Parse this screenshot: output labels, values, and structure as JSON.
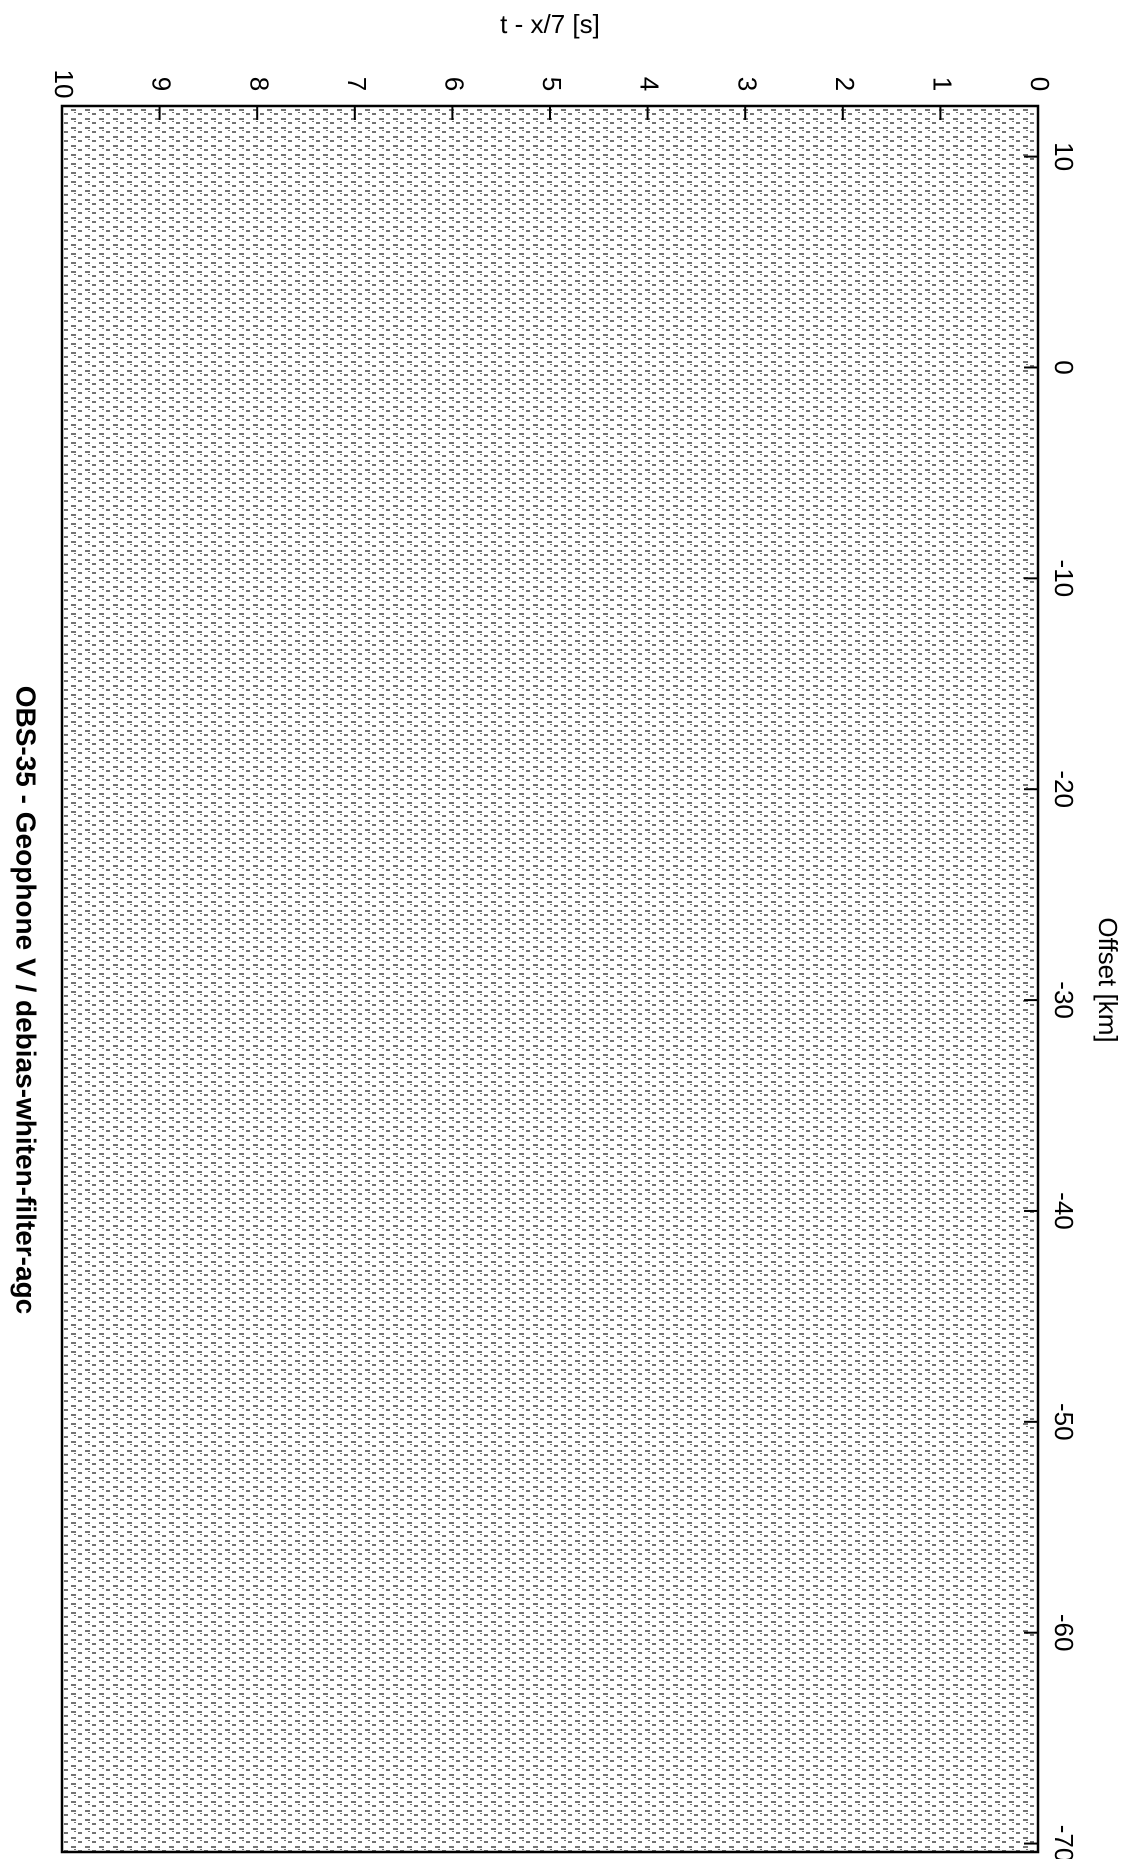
{
  "chart_data": {
    "type": "seismic",
    "title": "OBS-35  - Geophone V / debias-whiten-filter-agc",
    "x_label": "t - x/7 [s]",
    "y_label": "Offset [km]",
    "xlim": [
      0,
      10
    ],
    "xticks": [
      0,
      1,
      2,
      3,
      4,
      5,
      6,
      7,
      8,
      9,
      10
    ],
    "ylim": [
      12.4,
      -70.4
    ],
    "yticks": [
      10,
      0,
      -10,
      -20,
      -30,
      -40,
      -50,
      -60,
      -70
    ]
  }
}
